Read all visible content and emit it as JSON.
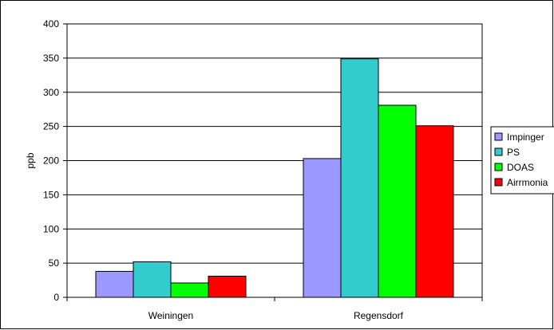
{
  "chart_data": {
    "type": "bar",
    "title": "",
    "xlabel": "",
    "ylabel": "ppb",
    "ylim": [
      0,
      400
    ],
    "yticks": [
      0,
      50,
      100,
      150,
      200,
      250,
      300,
      350,
      400
    ],
    "grid": true,
    "legend_position": "right",
    "categories": [
      "Weiningen",
      "Regensdorf"
    ],
    "series": [
      {
        "name": "Impinger",
        "color": "#9999ff",
        "values": [
          38,
          203
        ]
      },
      {
        "name": "PS",
        "color": "#33cccc",
        "values": [
          52,
          349
        ]
      },
      {
        "name": "DOAS",
        "color": "#00ff00",
        "values": [
          21,
          281
        ]
      },
      {
        "name": "Airrmonia",
        "color": "#ff0000",
        "values": [
          31,
          251
        ]
      }
    ]
  }
}
